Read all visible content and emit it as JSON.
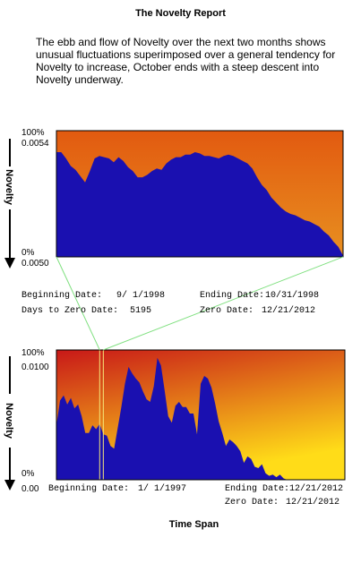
{
  "title": "The Novelty Report",
  "description": "The ebb and flow of Novelty over the next two months shows unusual fluctuations superimposed over a general tendency for Novelty to increase,  October ends with a steep descent into Novelty underway.",
  "x_axis_label": "Time Span",
  "chart_data": [
    {
      "type": "area",
      "name": "top-panel",
      "ylabel": "Novelty",
      "y_ticks_left": [
        "100%",
        "0%"
      ],
      "y_ticks_right": [
        "0.0054",
        "0.0050"
      ],
      "y_top_value": 0.0054,
      "y_bottom_value": 0.005,
      "beginning_date_label": "Beginning Date:",
      "beginning_date": "9/ 1/1998",
      "ending_date_label": "Ending Date:",
      "ending_date": "10/31/1998",
      "days_to_zero_label": "Days to Zero Date:",
      "days_to_zero": "5195",
      "zero_date_label": "Zero Date:",
      "zero_date": "12/21/2012",
      "background_gradient": [
        "#e25a10",
        "#e89020"
      ],
      "fill_color": "#1a10b0",
      "x": [
        0,
        1,
        2,
        3,
        4,
        5,
        6,
        7,
        8,
        9,
        10,
        11,
        12,
        13,
        14,
        15,
        16,
        17,
        18,
        19,
        20,
        21,
        22,
        23,
        24,
        25,
        26,
        27,
        28,
        29,
        30,
        31,
        32,
        33,
        34,
        35,
        36,
        37,
        38,
        39,
        40,
        41,
        42,
        43,
        44,
        45,
        46,
        47,
        48,
        49,
        50,
        51,
        52,
        53,
        54,
        55,
        56,
        57,
        58,
        59,
        60
      ],
      "values": [
        83,
        83,
        78,
        72,
        69,
        64,
        59,
        68,
        78,
        80,
        79,
        78,
        75,
        79,
        76,
        71,
        68,
        63,
        63,
        65,
        68,
        70,
        69,
        74,
        77,
        79,
        79,
        81,
        81,
        83,
        82,
        80,
        80,
        79,
        78,
        80,
        81,
        80,
        78,
        76,
        74,
        70,
        63,
        57,
        53,
        47,
        43,
        39,
        36,
        34,
        33,
        31,
        29,
        28,
        26,
        24,
        20,
        17,
        12,
        8,
        1
      ],
      "ylim": [
        0,
        100
      ]
    },
    {
      "type": "area",
      "name": "bottom-panel",
      "ylabel": "Novelty",
      "y_ticks_left": [
        "100%",
        "0%"
      ],
      "y_ticks_right": [
        "0.0100",
        "0.00"
      ],
      "y_top_value": 0.01,
      "y_bottom_value": 0.0,
      "beginning_date_label": "Beginning Date:",
      "beginning_date": "1/ 1/1997",
      "ending_date_label": "Ending Date:",
      "ending_date": "12/21/2012",
      "zero_date_label": "Zero Date:",
      "zero_date": "12/21/2012",
      "background_gradient": [
        "#c81818",
        "#ffdc18"
      ],
      "fill_color": "#1a10b0",
      "highlight_start_index": 12,
      "highlight_end_index": 13,
      "x": [
        0,
        1,
        2,
        3,
        4,
        5,
        6,
        7,
        8,
        9,
        10,
        11,
        12,
        13,
        14,
        15,
        16,
        17,
        18,
        19,
        20,
        21,
        22,
        23,
        24,
        25,
        26,
        27,
        28,
        29,
        30,
        31,
        32,
        33,
        34,
        35,
        36,
        37,
        38,
        39,
        40,
        41,
        42,
        43,
        44,
        45,
        46,
        47,
        48,
        49,
        50,
        51,
        52,
        53,
        54,
        55,
        56,
        57,
        58,
        59,
        60,
        61,
        62,
        63,
        64,
        65,
        66,
        67,
        68,
        69,
        70,
        71,
        72,
        73,
        74,
        75,
        76,
        77,
        78,
        79,
        80
      ],
      "values": [
        42,
        61,
        65,
        58,
        63,
        55,
        58,
        49,
        36,
        36,
        42,
        39,
        43,
        35,
        34,
        26,
        24,
        40,
        56,
        74,
        87,
        82,
        78,
        75,
        68,
        62,
        60,
        72,
        94,
        88,
        69,
        49,
        44,
        57,
        60,
        56,
        56,
        51,
        51,
        35,
        74,
        80,
        78,
        71,
        59,
        45,
        36,
        26,
        31,
        29,
        26,
        22,
        13,
        18,
        16,
        10,
        9,
        12,
        5,
        3,
        4,
        2,
        4,
        1,
        0,
        0,
        0,
        0,
        0,
        0,
        0,
        0,
        0,
        0,
        0,
        0,
        0,
        0,
        0,
        0,
        0
      ],
      "ylim": [
        0,
        100
      ]
    }
  ]
}
